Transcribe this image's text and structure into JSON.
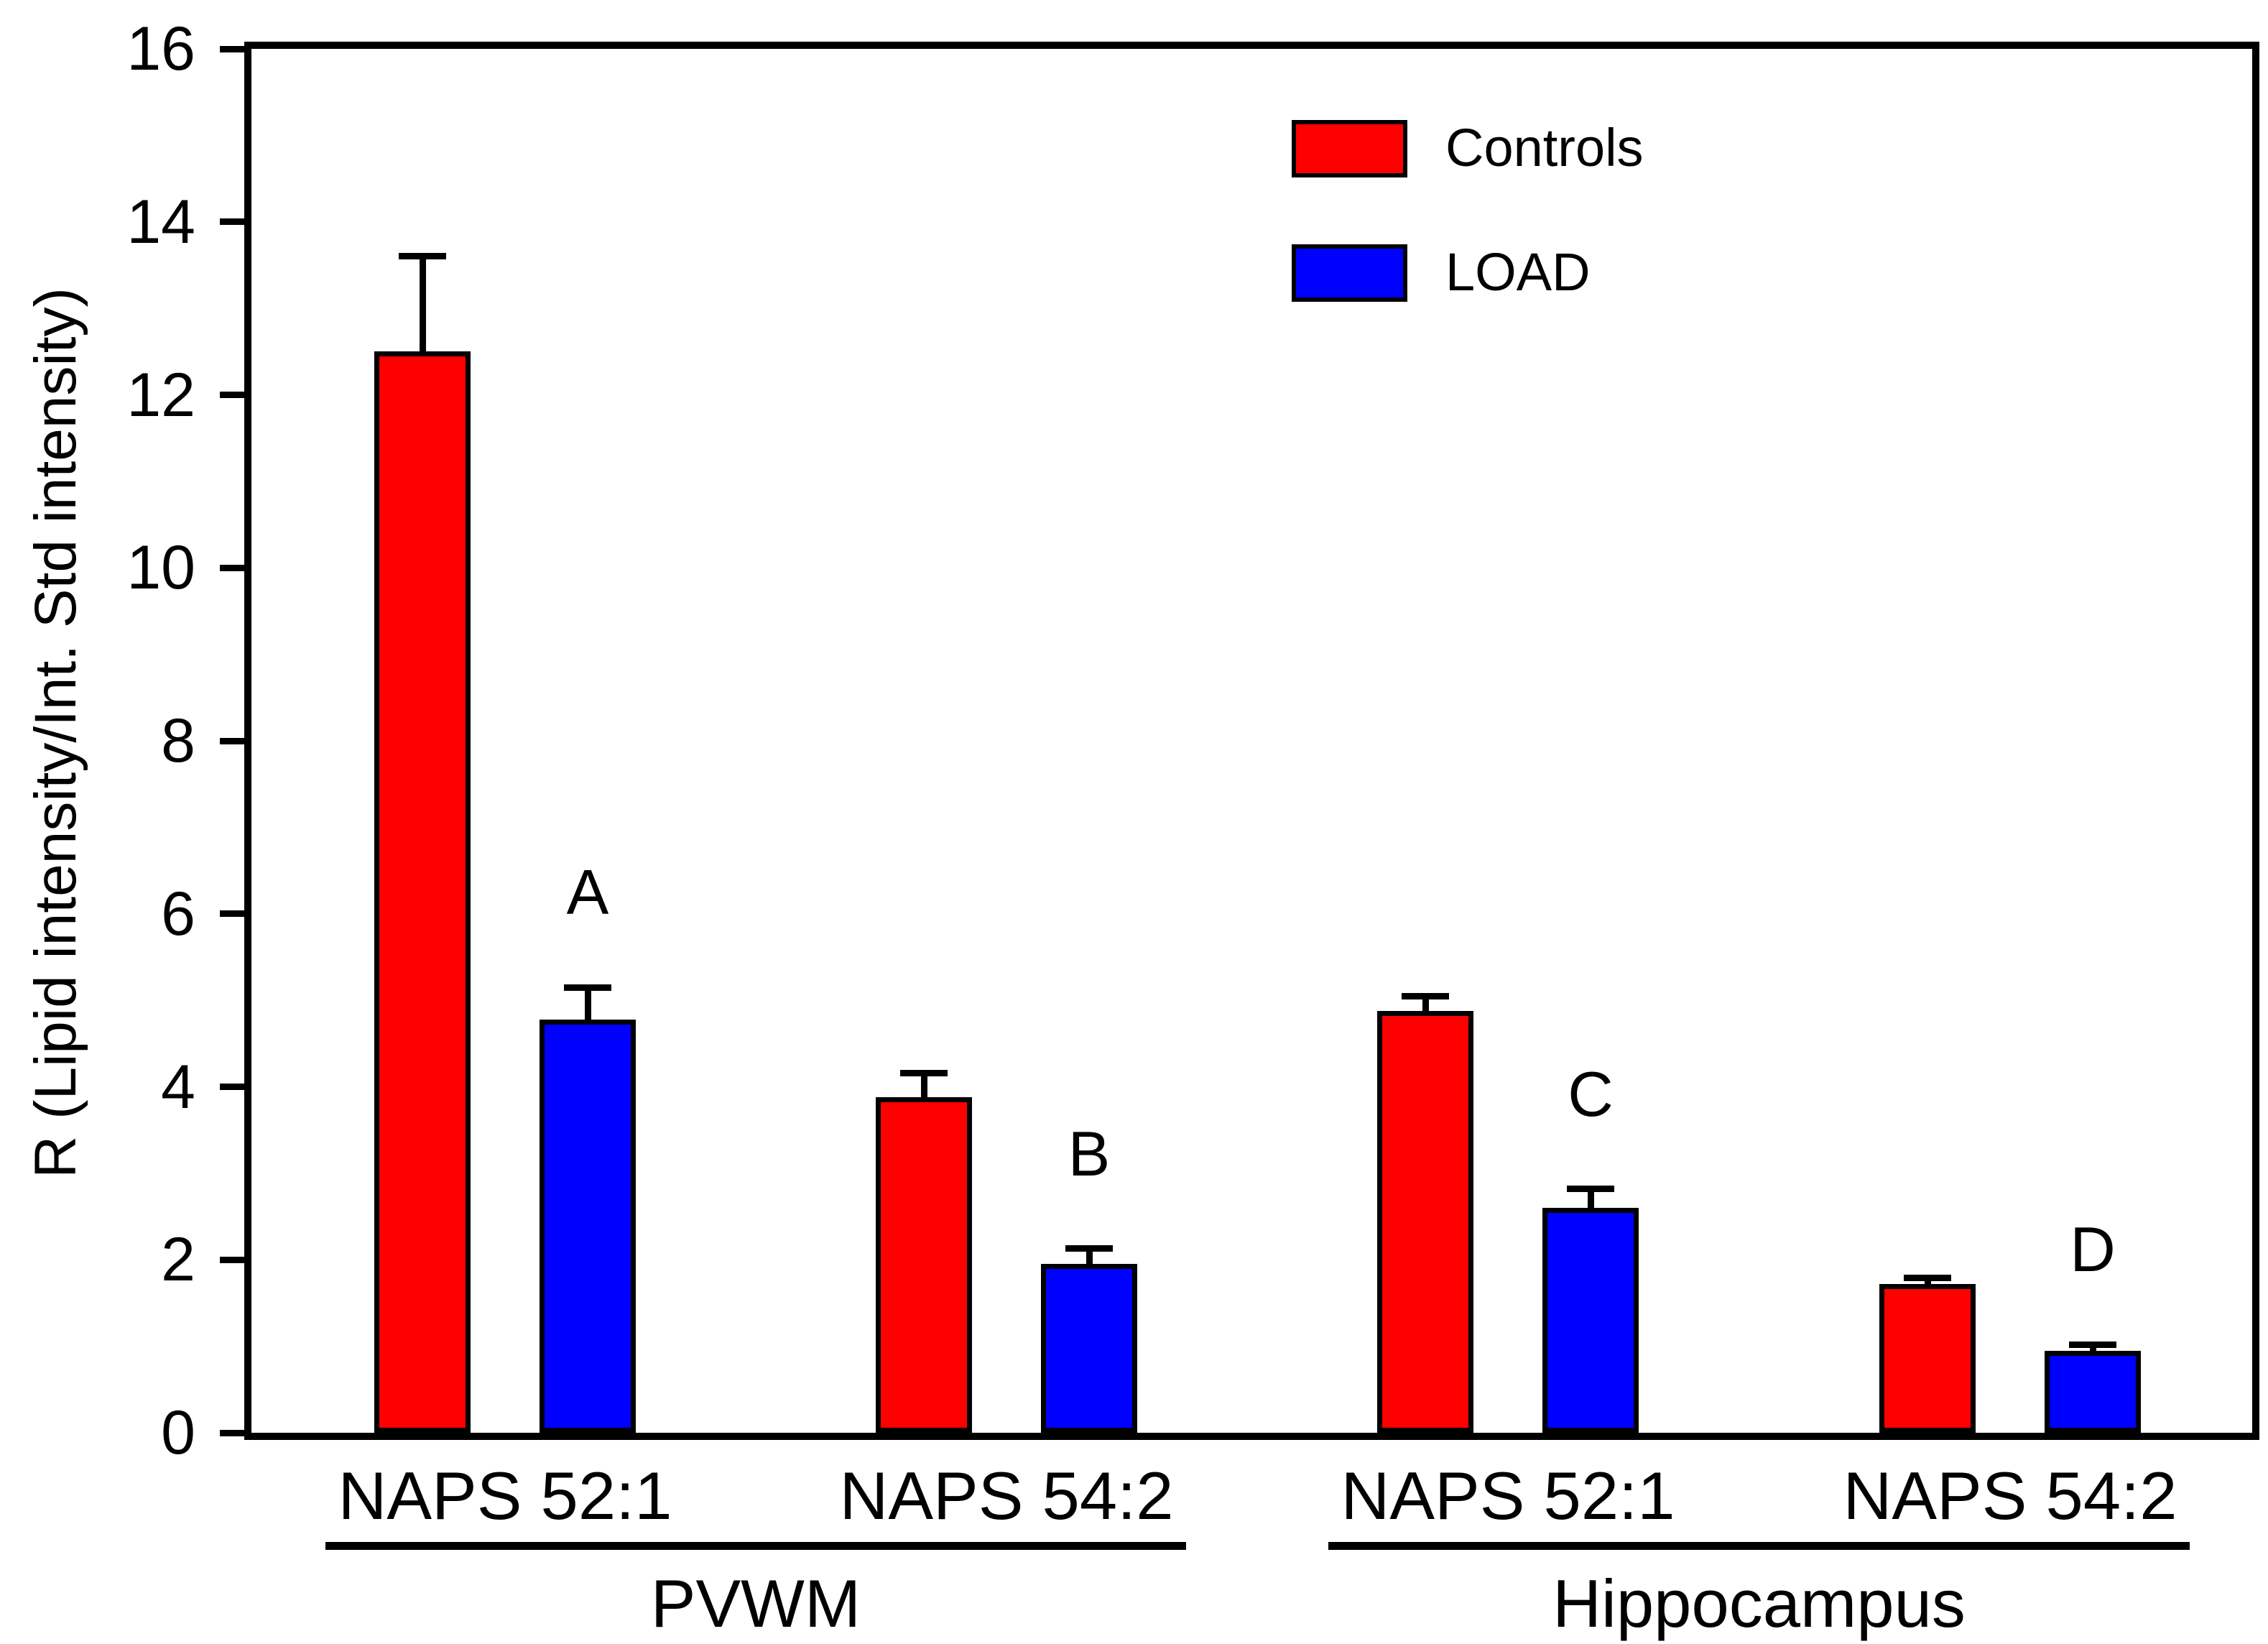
{
  "figure": {
    "background": "#ffffff",
    "frame_color": "#000000",
    "text_color": "#000000"
  },
  "legend": {
    "items": [
      {
        "label": "Controls",
        "color": "#ff0000"
      },
      {
        "label": "LOAD",
        "color": "#0000ff"
      }
    ]
  },
  "chart_data": {
    "type": "bar",
    "title": "",
    "xlabel": "",
    "ylabel": "R (Lipid intensity/Int. Std intensity)",
    "ylim": [
      0,
      16
    ],
    "yticks": [
      0,
      2,
      4,
      6,
      8,
      10,
      12,
      14,
      16
    ],
    "grid": false,
    "legend_position": "upper-center-inside",
    "error_bars": {
      "direction": "up",
      "caps": true
    },
    "categories": [
      "NAPS 52:1",
      "NAPS 54:2",
      "NAPS 52:1",
      "NAPS 54:2"
    ],
    "region_groups": [
      {
        "label": "PVWM",
        "category_indexes": [
          0,
          1
        ]
      },
      {
        "label": "Hippocampus",
        "category_indexes": [
          2,
          3
        ]
      }
    ],
    "series": [
      {
        "name": "Controls",
        "color": "#ff0000",
        "values": [
          12.5,
          3.88,
          4.88,
          1.72
        ],
        "errors_plus": [
          1.1,
          0.28,
          0.17,
          0.07
        ]
      },
      {
        "name": "LOAD",
        "color": "#0000ff",
        "values": [
          4.78,
          1.95,
          2.6,
          0.95
        ],
        "errors_plus": [
          0.37,
          0.18,
          0.22,
          0.07
        ]
      }
    ],
    "annotations": [
      {
        "text": "A",
        "series": "LOAD",
        "category_index": 0
      },
      {
        "text": "B",
        "series": "LOAD",
        "category_index": 1
      },
      {
        "text": "C",
        "series": "LOAD",
        "category_index": 2
      },
      {
        "text": "D",
        "series": "LOAD",
        "category_index": 3
      }
    ]
  }
}
